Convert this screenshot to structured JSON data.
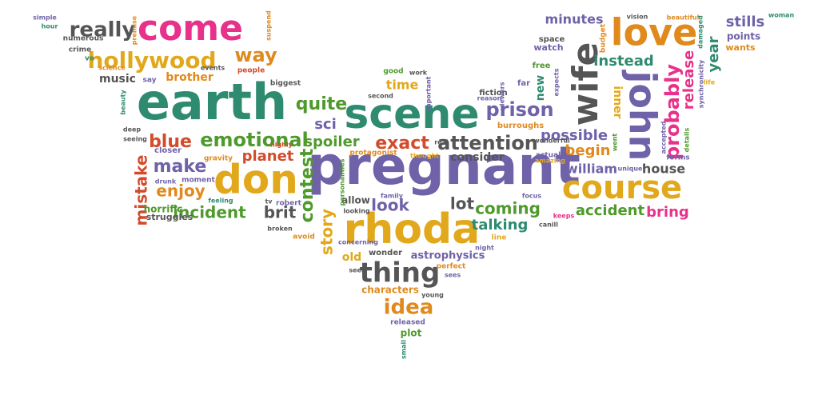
{
  "palette": {
    "teal": "#2e8b6f",
    "pink": "#e8318a",
    "orange": "#e08a1e",
    "gold": "#e2a81c",
    "purple": "#6f62a8",
    "gray": "#555555",
    "green": "#4f9a2c",
    "red": "#d34b2b",
    "lightpurple": "#8a74c0"
  },
  "words": [
    {
      "text": "earth",
      "color": "teal"
    },
    {
      "text": "pregnant",
      "color": "purple"
    },
    {
      "text": "scene",
      "color": "teal"
    },
    {
      "text": "rhoda",
      "color": "gold"
    },
    {
      "text": "don",
      "color": "gold"
    },
    {
      "text": "come",
      "color": "pink"
    },
    {
      "text": "love",
      "color": "orange"
    },
    {
      "text": "wife",
      "color": "gray"
    },
    {
      "text": "john",
      "color": "purple"
    },
    {
      "text": "course",
      "color": "gold"
    },
    {
      "text": "hollywood",
      "color": "gold"
    },
    {
      "text": "really",
      "color": "gray"
    },
    {
      "text": "way",
      "color": "orange"
    },
    {
      "text": "emotional",
      "color": "green"
    },
    {
      "text": "thing",
      "color": "gray"
    },
    {
      "text": "idea",
      "color": "orange"
    },
    {
      "text": "attention",
      "color": "gray"
    },
    {
      "text": "prison",
      "color": "purple"
    },
    {
      "text": "exact",
      "color": "red"
    },
    {
      "text": "blue",
      "color": "red"
    },
    {
      "text": "quite",
      "color": "green"
    },
    {
      "text": "make",
      "color": "purple"
    },
    {
      "text": "enjoy",
      "color": "orange"
    },
    {
      "text": "mistake",
      "color": "red"
    },
    {
      "text": "contest",
      "color": "green"
    },
    {
      "text": "story",
      "color": "gold"
    },
    {
      "text": "brit",
      "color": "gray"
    },
    {
      "text": "incident",
      "color": "green"
    },
    {
      "text": "planet",
      "color": "red"
    },
    {
      "text": "spoiler",
      "color": "green"
    },
    {
      "text": "sci",
      "color": "purple"
    },
    {
      "text": "look",
      "color": "purple"
    },
    {
      "text": "lot",
      "color": "gray"
    },
    {
      "text": "coming",
      "color": "green"
    },
    {
      "text": "talking",
      "color": "teal"
    },
    {
      "text": "accident",
      "color": "green"
    },
    {
      "text": "bring",
      "color": "pink"
    },
    {
      "text": "possible",
      "color": "purple"
    },
    {
      "text": "begin",
      "color": "orange"
    },
    {
      "text": "william",
      "color": "purple"
    },
    {
      "text": "house",
      "color": "gray"
    },
    {
      "text": "probably",
      "color": "pink"
    },
    {
      "text": "release",
      "color": "pink"
    },
    {
      "text": "year",
      "color": "teal"
    },
    {
      "text": "instead",
      "color": "teal"
    },
    {
      "text": "minutes",
      "color": "purple"
    },
    {
      "text": "stills",
      "color": "purple"
    },
    {
      "text": "inner",
      "color": "gold"
    },
    {
      "text": "new",
      "color": "teal"
    },
    {
      "text": "time",
      "color": "gold"
    },
    {
      "text": "brother",
      "color": "orange"
    },
    {
      "text": "music",
      "color": "gray"
    },
    {
      "text": "consider",
      "color": "gray"
    },
    {
      "text": "old",
      "color": "gold"
    },
    {
      "text": "astrophysics",
      "color": "purple"
    },
    {
      "text": "characters",
      "color": "orange"
    },
    {
      "text": "plot",
      "color": "green"
    },
    {
      "text": "released",
      "color": "purple"
    },
    {
      "text": "wonder",
      "color": "gray"
    },
    {
      "text": "allow",
      "color": "gray"
    },
    {
      "text": "horrific",
      "color": "green"
    },
    {
      "text": "struggles",
      "color": "gray"
    },
    {
      "text": "points",
      "color": "purple"
    },
    {
      "text": "wants",
      "color": "orange"
    },
    {
      "text": "budget",
      "color": "orange"
    },
    {
      "text": "watch",
      "color": "purple"
    },
    {
      "text": "space",
      "color": "gray"
    },
    {
      "text": "fiction",
      "color": "gray"
    },
    {
      "text": "free",
      "color": "green"
    },
    {
      "text": "far",
      "color": "purple"
    },
    {
      "text": "burroughs",
      "color": "orange"
    },
    {
      "text": "actually",
      "color": "purple"
    },
    {
      "text": "protagonist",
      "color": "orange"
    },
    {
      "text": "closer",
      "color": "purple"
    },
    {
      "text": "gravity",
      "color": "orange"
    },
    {
      "text": "moment",
      "color": "purple"
    },
    {
      "text": "robert",
      "color": "purple"
    },
    {
      "text": "broken",
      "color": "gray"
    },
    {
      "text": "avoid",
      "color": "orange"
    },
    {
      "text": "seen",
      "color": "gray"
    },
    {
      "text": "perfect",
      "color": "orange"
    },
    {
      "text": "sees",
      "color": "purple"
    },
    {
      "text": "young",
      "color": "gray"
    },
    {
      "text": "small",
      "color": "teal"
    },
    {
      "text": "line",
      "color": "gold"
    },
    {
      "text": "night",
      "color": "purple"
    },
    {
      "text": "focus",
      "color": "purple"
    },
    {
      "text": "keeps",
      "color": "pink"
    },
    {
      "text": "canill",
      "color": "gray"
    },
    {
      "text": "unique",
      "color": "purple"
    },
    {
      "text": "forms",
      "color": "purple"
    },
    {
      "text": "details",
      "color": "green"
    },
    {
      "text": "synchronicity",
      "color": "purple"
    },
    {
      "text": "woman",
      "color": "teal"
    },
    {
      "text": "beautiful",
      "color": "orange"
    },
    {
      "text": "vision",
      "color": "gray"
    },
    {
      "text": "science",
      "color": "orange"
    },
    {
      "text": "events",
      "color": "gray"
    },
    {
      "text": "suspend",
      "color": "orange"
    },
    {
      "text": "premise",
      "color": "orange"
    },
    {
      "text": "numerous",
      "color": "gray"
    },
    {
      "text": "crime",
      "color": "gray"
    },
    {
      "text": "simple",
      "color": "purple"
    },
    {
      "text": "hour",
      "color": "teal"
    },
    {
      "text": "people",
      "color": "red"
    },
    {
      "text": "biggest",
      "color": "gray"
    },
    {
      "text": "say",
      "color": "purple"
    },
    {
      "text": "good",
      "color": "green"
    },
    {
      "text": "second",
      "color": "gray"
    },
    {
      "text": "important",
      "color": "purple"
    },
    {
      "text": "reason",
      "color": "purple"
    },
    {
      "text": "deep",
      "color": "gray"
    },
    {
      "text": "seeing",
      "color": "gray"
    },
    {
      "text": "drunk",
      "color": "purple"
    },
    {
      "text": "feeling",
      "color": "teal"
    },
    {
      "text": "beauty",
      "color": "teal"
    },
    {
      "text": "personalities",
      "color": "green"
    },
    {
      "text": "family",
      "color": "purple"
    },
    {
      "text": "looking",
      "color": "gray"
    },
    {
      "text": "real",
      "color": "gray"
    },
    {
      "text": "thought",
      "color": "gold"
    },
    {
      "text": "expects",
      "color": "purple"
    },
    {
      "text": "viewers",
      "color": "purple"
    },
    {
      "text": "went",
      "color": "green"
    },
    {
      "text": "accepted",
      "color": "purple"
    },
    {
      "text": "damaged",
      "color": "teal"
    },
    {
      "text": "life",
      "color": "gold"
    },
    {
      "text": "ve",
      "color": "teal"
    },
    {
      "text": "tv",
      "color": "gray"
    },
    {
      "text": "work",
      "color": "gray"
    },
    {
      "text": "highly",
      "color": "red"
    },
    {
      "text": "concerning",
      "color": "purple"
    },
    {
      "text": "wonderful",
      "color": "gray"
    },
    {
      "text": "amazing",
      "color": "gold"
    }
  ]
}
